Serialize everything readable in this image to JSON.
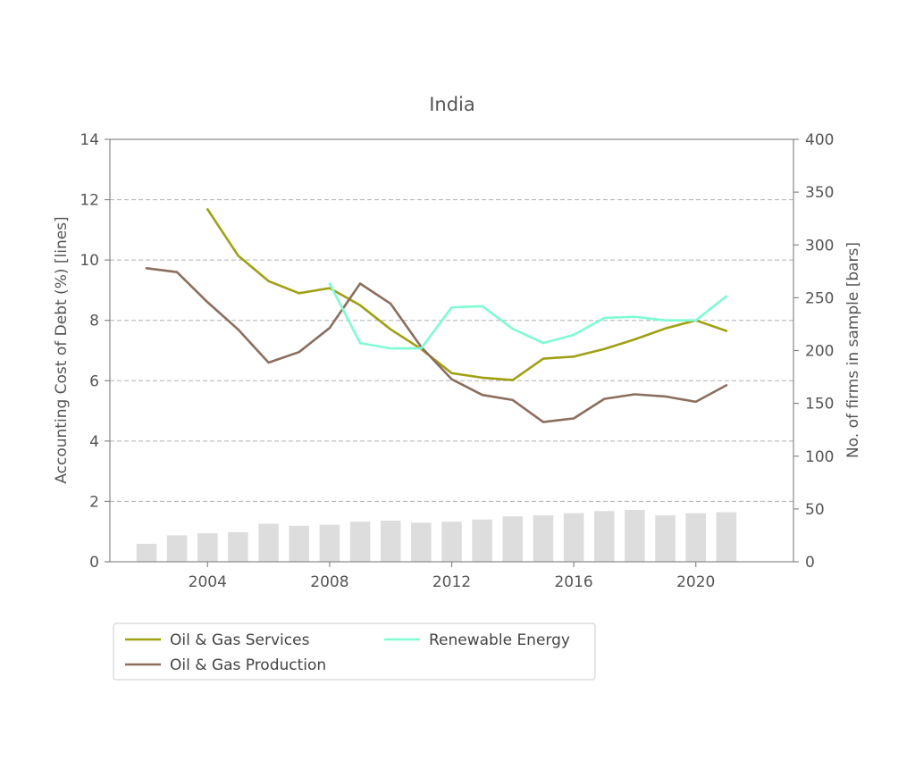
{
  "chart_data": {
    "type": "line",
    "title": "India",
    "ylabel": "Accounting Cost of Debt (%)  [lines]",
    "y2label": "No. of firms in sample [bars]",
    "xlim": [
      2000.8,
      2023.2
    ],
    "ylim": [
      0,
      14
    ],
    "y2lim": [
      0,
      400
    ],
    "xticks": [
      2004,
      2008,
      2012,
      2016,
      2020
    ],
    "yticks": [
      0,
      2,
      4,
      6,
      8,
      10,
      12,
      14
    ],
    "y2ticks": [
      0,
      50,
      100,
      150,
      200,
      250,
      300,
      350,
      400
    ],
    "grid": "horizontal dashed",
    "legend_placement": "below",
    "series": [
      {
        "name": "Oil & Gas Services",
        "color": "#a0a014",
        "x": [
          2004,
          2005,
          2006,
          2007,
          2008,
          2009,
          2010,
          2011,
          2012,
          2013,
          2014,
          2015,
          2016,
          2017,
          2018,
          2019,
          2020,
          2021
        ],
        "values": [
          11.68,
          10.15,
          9.3,
          8.9,
          9.07,
          8.5,
          7.7,
          7.05,
          6.25,
          6.1,
          6.02,
          6.73,
          6.8,
          7.05,
          7.37,
          7.73,
          8.0,
          7.65
        ]
      },
      {
        "name": "Oil & Gas Production",
        "color": "#8c6e5e",
        "x": [
          2002,
          2003,
          2004,
          2005,
          2006,
          2007,
          2008,
          2009,
          2010,
          2011,
          2012,
          2013,
          2014,
          2015,
          2016,
          2017,
          2018,
          2019,
          2020,
          2021
        ],
        "values": [
          9.73,
          9.6,
          8.6,
          7.7,
          6.6,
          6.95,
          7.75,
          9.22,
          8.55,
          7.12,
          6.05,
          5.53,
          5.36,
          4.63,
          4.75,
          5.4,
          5.55,
          5.48,
          5.3,
          5.85
        ]
      },
      {
        "name": "Renewable Energy",
        "color": "#7ffbd4",
        "x": [
          2008,
          2009,
          2010,
          2011,
          2012,
          2013,
          2014,
          2015,
          2016,
          2017,
          2018,
          2019,
          2020,
          2021
        ],
        "values": [
          9.22,
          7.25,
          7.07,
          7.07,
          8.43,
          8.47,
          7.72,
          7.25,
          7.52,
          8.08,
          8.12,
          8.0,
          8.0,
          8.8
        ]
      }
    ],
    "bars": {
      "color": "#dddddd",
      "x": [
        2002,
        2003,
        2004,
        2005,
        2006,
        2007,
        2008,
        2009,
        2010,
        2011,
        2012,
        2013,
        2014,
        2015,
        2016,
        2017,
        2018,
        2019,
        2020,
        2021
      ],
      "values": [
        17,
        25,
        27,
        28,
        36,
        34,
        35,
        38,
        39,
        37,
        38,
        40,
        43,
        44,
        46,
        48,
        49,
        44,
        46,
        47
      ]
    }
  }
}
